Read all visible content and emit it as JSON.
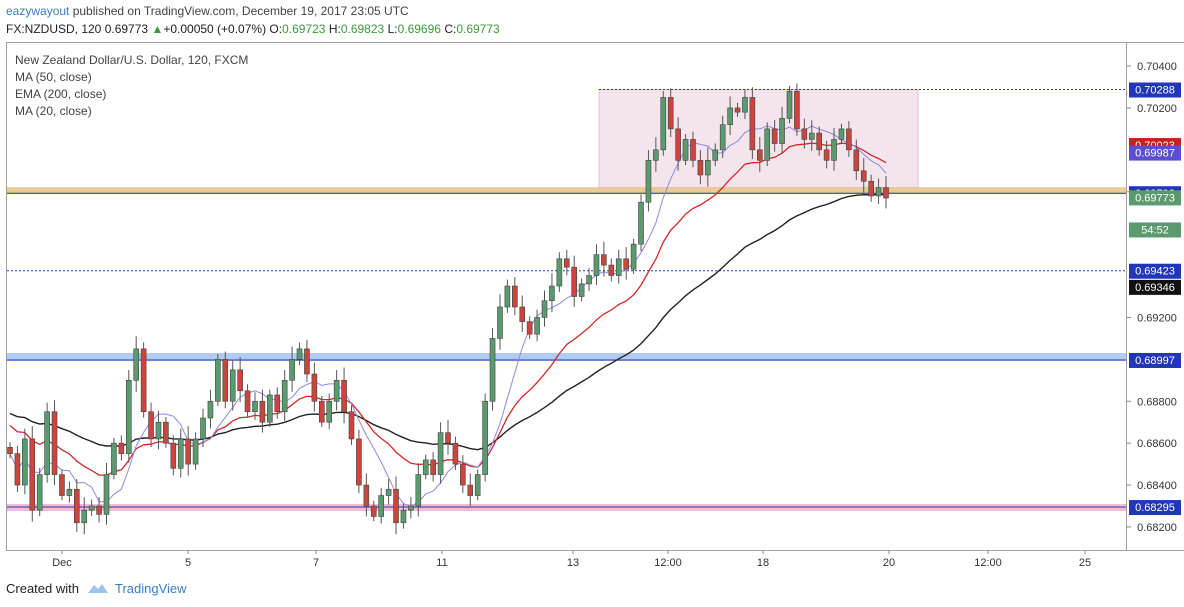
{
  "header": {
    "user": "eazywayout",
    "published": " published on TradingView.com, December 19, 2017 23:05 UTC",
    "symbol": "FX:NZDUSD, 120",
    "last": "0.69773",
    "change": "+0.00050 (+0.07%)",
    "o_label": "O:",
    "o": "0.69723",
    "h_label": "H:",
    "h": "0.69823",
    "l_label": "L:",
    "l": "0.69696",
    "c_label": "C:",
    "c": "0.69773"
  },
  "legend": {
    "title": "New Zealand Dollar/U.S. Dollar, 120, FXCM",
    "ma50": "MA (50, close)",
    "ema200": "EMA (200, close)",
    "ma20": "MA (20, close)"
  },
  "footer": {
    "created_with": "Created with",
    "brand": "TradingView"
  },
  "colors": {
    "up": "#5b9a6e",
    "down": "#c8463e",
    "ma50": "#d02a2a",
    "ema200": "#222222",
    "ma20": "#8f87e6",
    "level_line": "#2236b8",
    "orange_zone": "#e8c48c",
    "blue_zone": "#a9c6f0",
    "pink_zone": "#f0a9c4",
    "rect": "#f1dde6"
  },
  "chart_data": {
    "type": "candlestick",
    "title": "New Zealand Dollar/U.S. Dollar, 120, FXCM",
    "ylim": [
      0.6809,
      0.7051
    ],
    "y_ticks": [
      "0.70400",
      "0.70200",
      "0.69800",
      "0.69200",
      "0.68800",
      "0.68600",
      "0.68400",
      "0.68200"
    ],
    "x_ticks": [
      "Dec",
      "5",
      "7",
      "11",
      "13",
      "12:00",
      "18",
      "20",
      "12:00",
      "25"
    ],
    "price_labels": [
      {
        "text": "0.70288",
        "value": 0.70288,
        "kind": "line"
      },
      {
        "text": "0.70023",
        "value": 0.70023,
        "kind": "ma50"
      },
      {
        "text": "0.69987",
        "value": 0.69987,
        "kind": "ma20"
      },
      {
        "text": "0.69793",
        "value": 0.69793,
        "kind": "line"
      },
      {
        "text": "0.69773",
        "value": 0.69773,
        "kind": "last"
      },
      {
        "text": "54:52",
        "value": 0.6962,
        "kind": "timer"
      },
      {
        "text": "0.69423",
        "value": 0.69423,
        "kind": "line"
      },
      {
        "text": "0.69346",
        "value": 0.69346,
        "kind": "ema200"
      },
      {
        "text": "0.68997",
        "value": 0.68997,
        "kind": "line"
      },
      {
        "text": "0.68295",
        "value": 0.68295,
        "kind": "line"
      }
    ],
    "levels": [
      {
        "value": 0.70288,
        "style": "dotted"
      },
      {
        "value": 0.69793,
        "style": "zone-orange"
      },
      {
        "value": 0.69423,
        "style": "dotted"
      },
      {
        "value": 0.68997,
        "style": "zone-blue"
      },
      {
        "value": 0.68295,
        "style": "zone-pink"
      }
    ],
    "box": {
      "high": 0.70288,
      "low": 0.6982,
      "from": "13",
      "to": "20"
    },
    "path": [
      0.6855,
      0.684,
      0.6862,
      0.6828,
      0.6845,
      0.6875,
      0.6845,
      0.6835,
      0.6838,
      0.6822,
      0.6828,
      0.683,
      0.6826,
      0.6845,
      0.686,
      0.6855,
      0.689,
      0.6905,
      0.6875,
      0.6862,
      0.687,
      0.686,
      0.6848,
      0.6862,
      0.685,
      0.6862,
      0.6872,
      0.688,
      0.69,
      0.688,
      0.6895,
      0.6885,
      0.6875,
      0.688,
      0.687,
      0.6883,
      0.6875,
      0.689,
      0.69,
      0.6905,
      0.6893,
      0.688,
      0.687,
      0.688,
      0.689,
      0.6875,
      0.6862,
      0.684,
      0.683,
      0.6825,
      0.6835,
      0.6838,
      0.6822,
      0.6828,
      0.683,
      0.6845,
      0.6852,
      0.6845,
      0.6865,
      0.686,
      0.685,
      0.684,
      0.6835,
      0.6845,
      0.688,
      0.691,
      0.6925,
      0.6935,
      0.6925,
      0.6918,
      0.6912,
      0.692,
      0.6928,
      0.6935,
      0.6948,
      0.6944,
      0.693,
      0.6936,
      0.694,
      0.695,
      0.6945,
      0.694,
      0.6948,
      0.6943,
      0.6955,
      0.6975,
      0.6995,
      0.7,
      0.7025,
      0.701,
      0.6995,
      0.7005,
      0.6995,
      0.6988,
      0.6995,
      0.7,
      0.7012,
      0.702,
      0.7018,
      0.7025,
      0.7,
      0.6995,
      0.701,
      0.7003,
      0.7015,
      0.7028,
      0.701,
      0.7005,
      0.7008,
      0.7,
      0.6995,
      0.7005,
      0.701,
      0.7,
      0.699,
      0.6985,
      0.6978,
      0.6982,
      0.6977
    ]
  }
}
